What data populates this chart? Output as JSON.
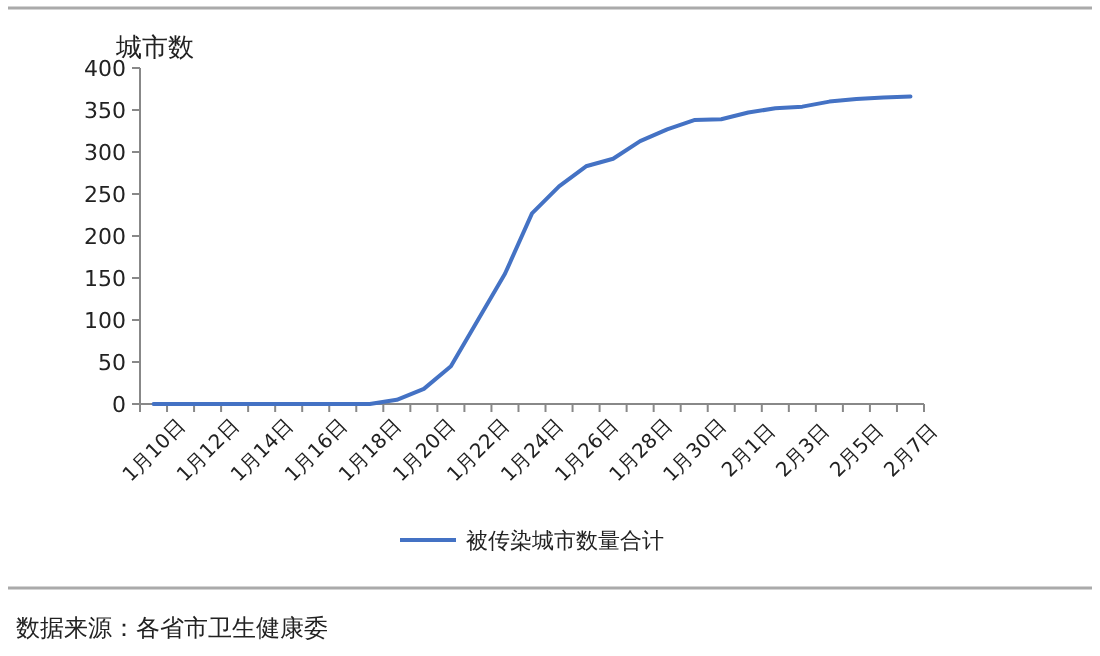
{
  "chart_data": {
    "type": "line",
    "ylabel": "城市数",
    "categories": [
      "1月10日",
      null,
      "1月12日",
      null,
      "1月14日",
      null,
      "1月16日",
      null,
      "1月18日",
      null,
      "1月20日",
      null,
      "1月22日",
      null,
      "1月24日",
      null,
      "1月26日",
      null,
      "1月28日",
      null,
      "1月30日",
      null,
      "2月1日",
      null,
      "2月3日",
      null,
      "2月5日",
      null,
      "2月7日"
    ],
    "series": [
      {
        "name": "被传染城市数量合计",
        "color": "#4472c4",
        "values": [
          0,
          0,
          0,
          0,
          0,
          0,
          0,
          0,
          0,
          5,
          18,
          45,
          100,
          155,
          227,
          259,
          283,
          292,
          313,
          327,
          338,
          339,
          347,
          352,
          354,
          360,
          363,
          365,
          366
        ]
      }
    ],
    "ylim": [
      0,
      400
    ],
    "yticks": [
      0,
      50,
      100,
      150,
      200,
      250,
      300,
      350,
      400
    ],
    "grid": false,
    "legend": "bottom",
    "marker": "none",
    "line_style": "solid",
    "annotations": [
      "数据来源：各省市卫生健康委"
    ]
  }
}
